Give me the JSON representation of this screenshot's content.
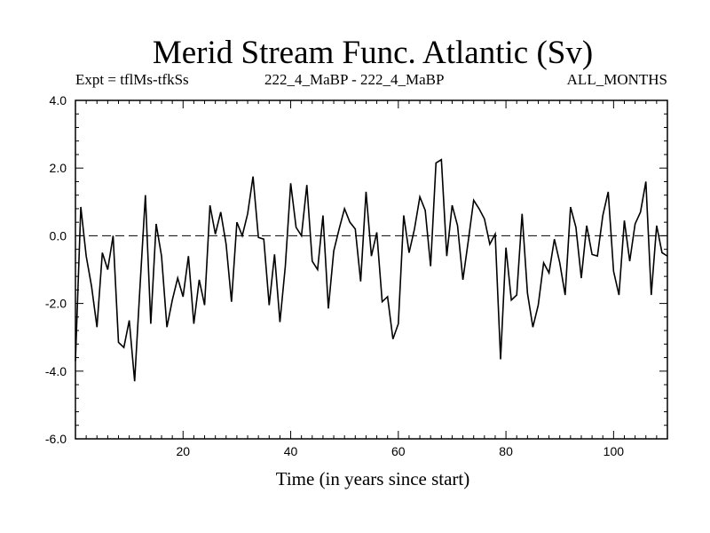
{
  "header": {
    "title": "Merid Stream Func. Atlantic (Sv)",
    "expt_label": "Expt = tflMs-tfkSs",
    "comparison_label": "222_4_MaBP - 222_4_MaBP",
    "period_label": "ALL_MONTHS"
  },
  "chart_data": {
    "type": "line",
    "title": "Merid Stream Func. Atlantic (Sv)",
    "xlabel": "Time (in years since start)",
    "ylabel": "",
    "xlim": [
      0,
      110
    ],
    "ylim": [
      -6.0,
      4.0
    ],
    "x_ticks": [
      20,
      40,
      60,
      80,
      100
    ],
    "x_tick_labels": [
      "20",
      "40",
      "60",
      "80",
      "100"
    ],
    "y_ticks": [
      -6.0,
      -4.0,
      -2.0,
      0.0,
      2.0,
      4.0
    ],
    "y_tick_labels": [
      "-6.0",
      "-4.0",
      "-2.0",
      "0.0",
      "2.0",
      "4.0"
    ],
    "reference_line": {
      "y": 0.0,
      "style": "dashed"
    },
    "series": [
      {
        "name": "Merid Stream Func. Atlantic",
        "color": "#000000",
        "x": [
          0,
          1,
          2,
          3,
          4,
          5,
          6,
          7,
          8,
          9,
          10,
          11,
          12,
          13,
          14,
          15,
          16,
          17,
          18,
          19,
          20,
          21,
          22,
          23,
          24,
          25,
          26,
          27,
          28,
          29,
          30,
          31,
          32,
          33,
          34,
          35,
          36,
          37,
          38,
          39,
          40,
          41,
          42,
          43,
          44,
          45,
          46,
          47,
          48,
          49,
          50,
          51,
          52,
          53,
          54,
          55,
          56,
          57,
          58,
          59,
          60,
          61,
          62,
          63,
          64,
          65,
          66,
          67,
          68,
          69,
          70,
          71,
          72,
          73,
          74,
          75,
          76,
          77,
          78,
          79,
          80,
          81,
          82,
          83,
          84,
          85,
          86,
          87,
          88,
          89,
          90,
          91,
          92,
          93,
          94,
          95,
          96,
          97,
          98,
          99,
          100,
          101,
          102,
          103,
          104,
          105,
          106,
          107,
          108,
          109,
          110
        ],
        "values": [
          -3.7,
          0.85,
          -0.6,
          -1.5,
          -2.7,
          -0.5,
          -1.0,
          0.0,
          -3.15,
          -3.3,
          -2.5,
          -4.3,
          -1.5,
          1.2,
          -2.6,
          0.35,
          -0.6,
          -2.7,
          -1.9,
          -1.25,
          -1.8,
          -0.6,
          -2.6,
          -1.3,
          -2.05,
          0.9,
          0.05,
          0.7,
          -0.25,
          -1.95,
          0.4,
          0.0,
          0.65,
          1.75,
          -0.05,
          -0.1,
          -2.05,
          -0.55,
          -2.55,
          -0.9,
          1.55,
          0.25,
          0.0,
          1.5,
          -0.75,
          -1.0,
          0.6,
          -2.15,
          -0.45,
          0.2,
          0.8,
          0.4,
          0.2,
          -1.35,
          1.3,
          -0.6,
          0.1,
          -1.95,
          -1.8,
          -3.05,
          -2.6,
          0.6,
          -0.5,
          0.2,
          1.15,
          0.75,
          -0.9,
          2.15,
          2.25,
          -0.6,
          0.9,
          0.3,
          -1.3,
          -0.15,
          1.05,
          0.8,
          0.5,
          -0.25,
          0.05,
          -3.65,
          -0.35,
          -1.9,
          -1.75,
          0.65,
          -1.7,
          -2.7,
          -2.05,
          -0.8,
          -1.1,
          -0.1,
          -0.8,
          -1.75,
          0.85,
          0.25,
          -1.25,
          0.3,
          -0.55,
          -0.6,
          0.6,
          1.3,
          -1.05,
          -1.75,
          0.45,
          -0.75,
          0.35,
          0.7,
          1.6,
          -1.75,
          0.3,
          -0.5,
          -0.6
        ]
      }
    ]
  }
}
